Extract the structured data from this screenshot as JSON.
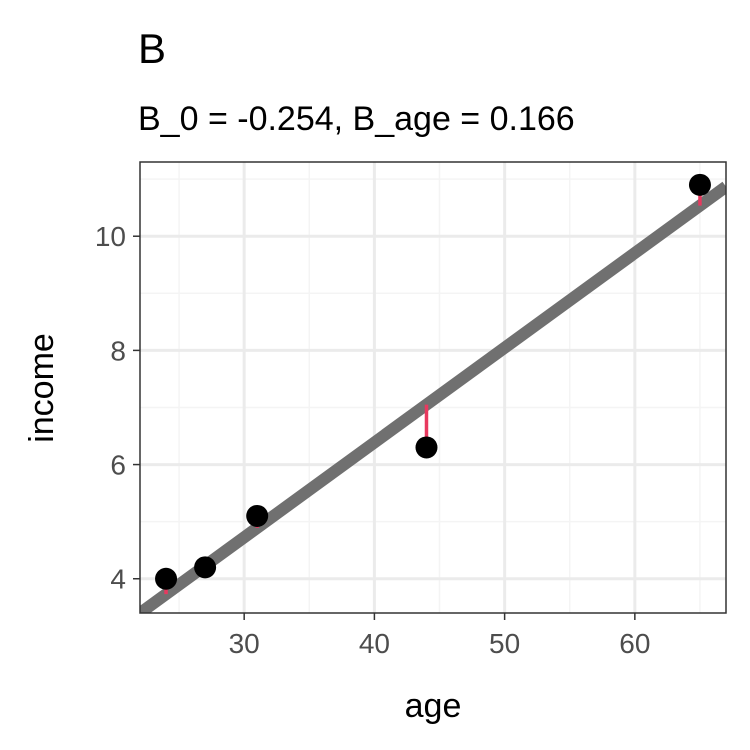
{
  "chart_data": {
    "type": "scatter",
    "title": "B",
    "subtitle": "B_0 = -0.254, B_age = 0.166",
    "xlabel": "age",
    "ylabel": "income",
    "xlim": [
      22.0,
      67.0
    ],
    "ylim": [
      3.4,
      11.3
    ],
    "x_ticks": [
      30,
      40,
      50,
      60
    ],
    "y_ticks": [
      4,
      6,
      8,
      10
    ],
    "x_minor": [
      25,
      35,
      45,
      55,
      65
    ],
    "y_minor": [
      3,
      5,
      7,
      9,
      11
    ],
    "grid": true,
    "fit_line": {
      "intercept": -0.254,
      "slope": 0.166
    },
    "points": [
      {
        "x": 24,
        "y": 4.0
      },
      {
        "x": 27,
        "y": 4.2
      },
      {
        "x": 31,
        "y": 5.1
      },
      {
        "x": 44,
        "y": 6.3
      },
      {
        "x": 65,
        "y": 10.9
      }
    ],
    "colors": {
      "point": "#000000",
      "fit_line": "#707070",
      "residual": "#e8395f",
      "grid_major": "#ebebeb",
      "grid_minor": "#f4f4f4",
      "panel_border": "#333333"
    }
  }
}
